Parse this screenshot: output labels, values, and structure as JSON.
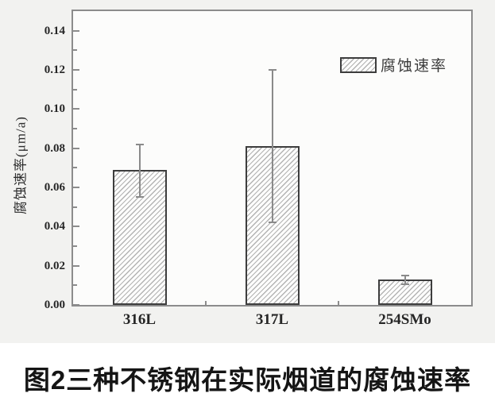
{
  "figure": {
    "caption": "图2三种不锈钢在实际烟道的腐蚀速率"
  },
  "chart_data": {
    "type": "bar",
    "title": "",
    "xlabel": "",
    "ylabel": "腐蚀速率(μm/a)",
    "categories": [
      "316L",
      "317L",
      "254SMo"
    ],
    "values": [
      0.069,
      0.081,
      0.013
    ],
    "errors": [
      {
        "plus": 0.013,
        "minus": 0.014
      },
      {
        "plus": 0.039,
        "minus": 0.039
      },
      {
        "plus": 0.002,
        "minus": 0.0025
      }
    ],
    "ylim": [
      0,
      0.15
    ],
    "ytick_step": 0.02,
    "yticks": [
      "0.00",
      "0.02",
      "0.04",
      "0.06",
      "0.08",
      "0.10",
      "0.12",
      "0.14"
    ],
    "minor_tick_step": 0.01,
    "grid": false,
    "bar_hatch": "diagonal-forward",
    "legend": {
      "label": "腐蚀速率",
      "position": "top-right"
    },
    "colors": {
      "axis": "#8c8c8c",
      "bar_border": "#3d3d3d",
      "hatch_line": "#b3b3b3",
      "hatch_bg": "#fdfdfc",
      "error_bar": "#8a8a8a",
      "text": "#262626"
    }
  }
}
